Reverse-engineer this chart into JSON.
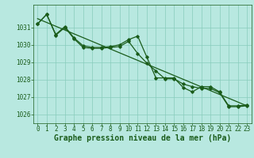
{
  "background_color": "#b8e8e0",
  "grid_color": "#88ccbb",
  "line_color": "#1a5c1a",
  "xlabel": "Graphe pression niveau de la mer (hPa)",
  "ylim": [
    1025.5,
    1032.3
  ],
  "xlim": [
    -0.5,
    23.5
  ],
  "yticks": [
    1026,
    1027,
    1028,
    1029,
    1030,
    1031
  ],
  "xticks": [
    0,
    1,
    2,
    3,
    4,
    5,
    6,
    7,
    8,
    9,
    10,
    11,
    12,
    13,
    14,
    15,
    16,
    17,
    18,
    19,
    20,
    21,
    22,
    23
  ],
  "font_color": "#1a5c1a",
  "font_size_label": 7,
  "font_size_tick": 5.5,
  "trend_x": [
    0,
    23
  ],
  "trend_y": [
    1031.5,
    1026.5
  ],
  "line1_x": [
    0,
    1,
    2,
    3,
    4,
    5,
    6,
    7,
    8,
    9,
    10,
    11,
    12,
    13,
    14,
    15,
    16,
    17,
    18,
    19,
    20,
    21,
    22,
    23
  ],
  "line1_y": [
    1031.2,
    1031.75,
    1030.6,
    1031.05,
    1030.4,
    1029.95,
    1029.85,
    1029.85,
    1029.9,
    1030.0,
    1030.3,
    1030.5,
    1029.3,
    1028.1,
    1028.1,
    1028.1,
    1027.55,
    1027.3,
    1027.6,
    1027.6,
    1027.3,
    1026.5,
    1026.5,
    1026.55
  ],
  "line2_x": [
    0,
    1,
    2,
    3,
    4,
    5,
    6,
    7,
    8,
    9,
    10,
    11,
    12,
    13,
    14,
    15,
    16,
    17,
    18,
    19,
    20,
    21,
    22,
    23
  ],
  "line2_y": [
    1031.2,
    1031.75,
    1030.55,
    1031.0,
    1030.35,
    1029.85,
    1029.8,
    1029.8,
    1029.85,
    1029.9,
    1030.2,
    1029.5,
    1028.95,
    1028.5,
    1028.05,
    1028.05,
    1027.75,
    1027.6,
    1027.5,
    1027.5,
    1027.25,
    1026.45,
    1026.45,
    1026.5
  ]
}
